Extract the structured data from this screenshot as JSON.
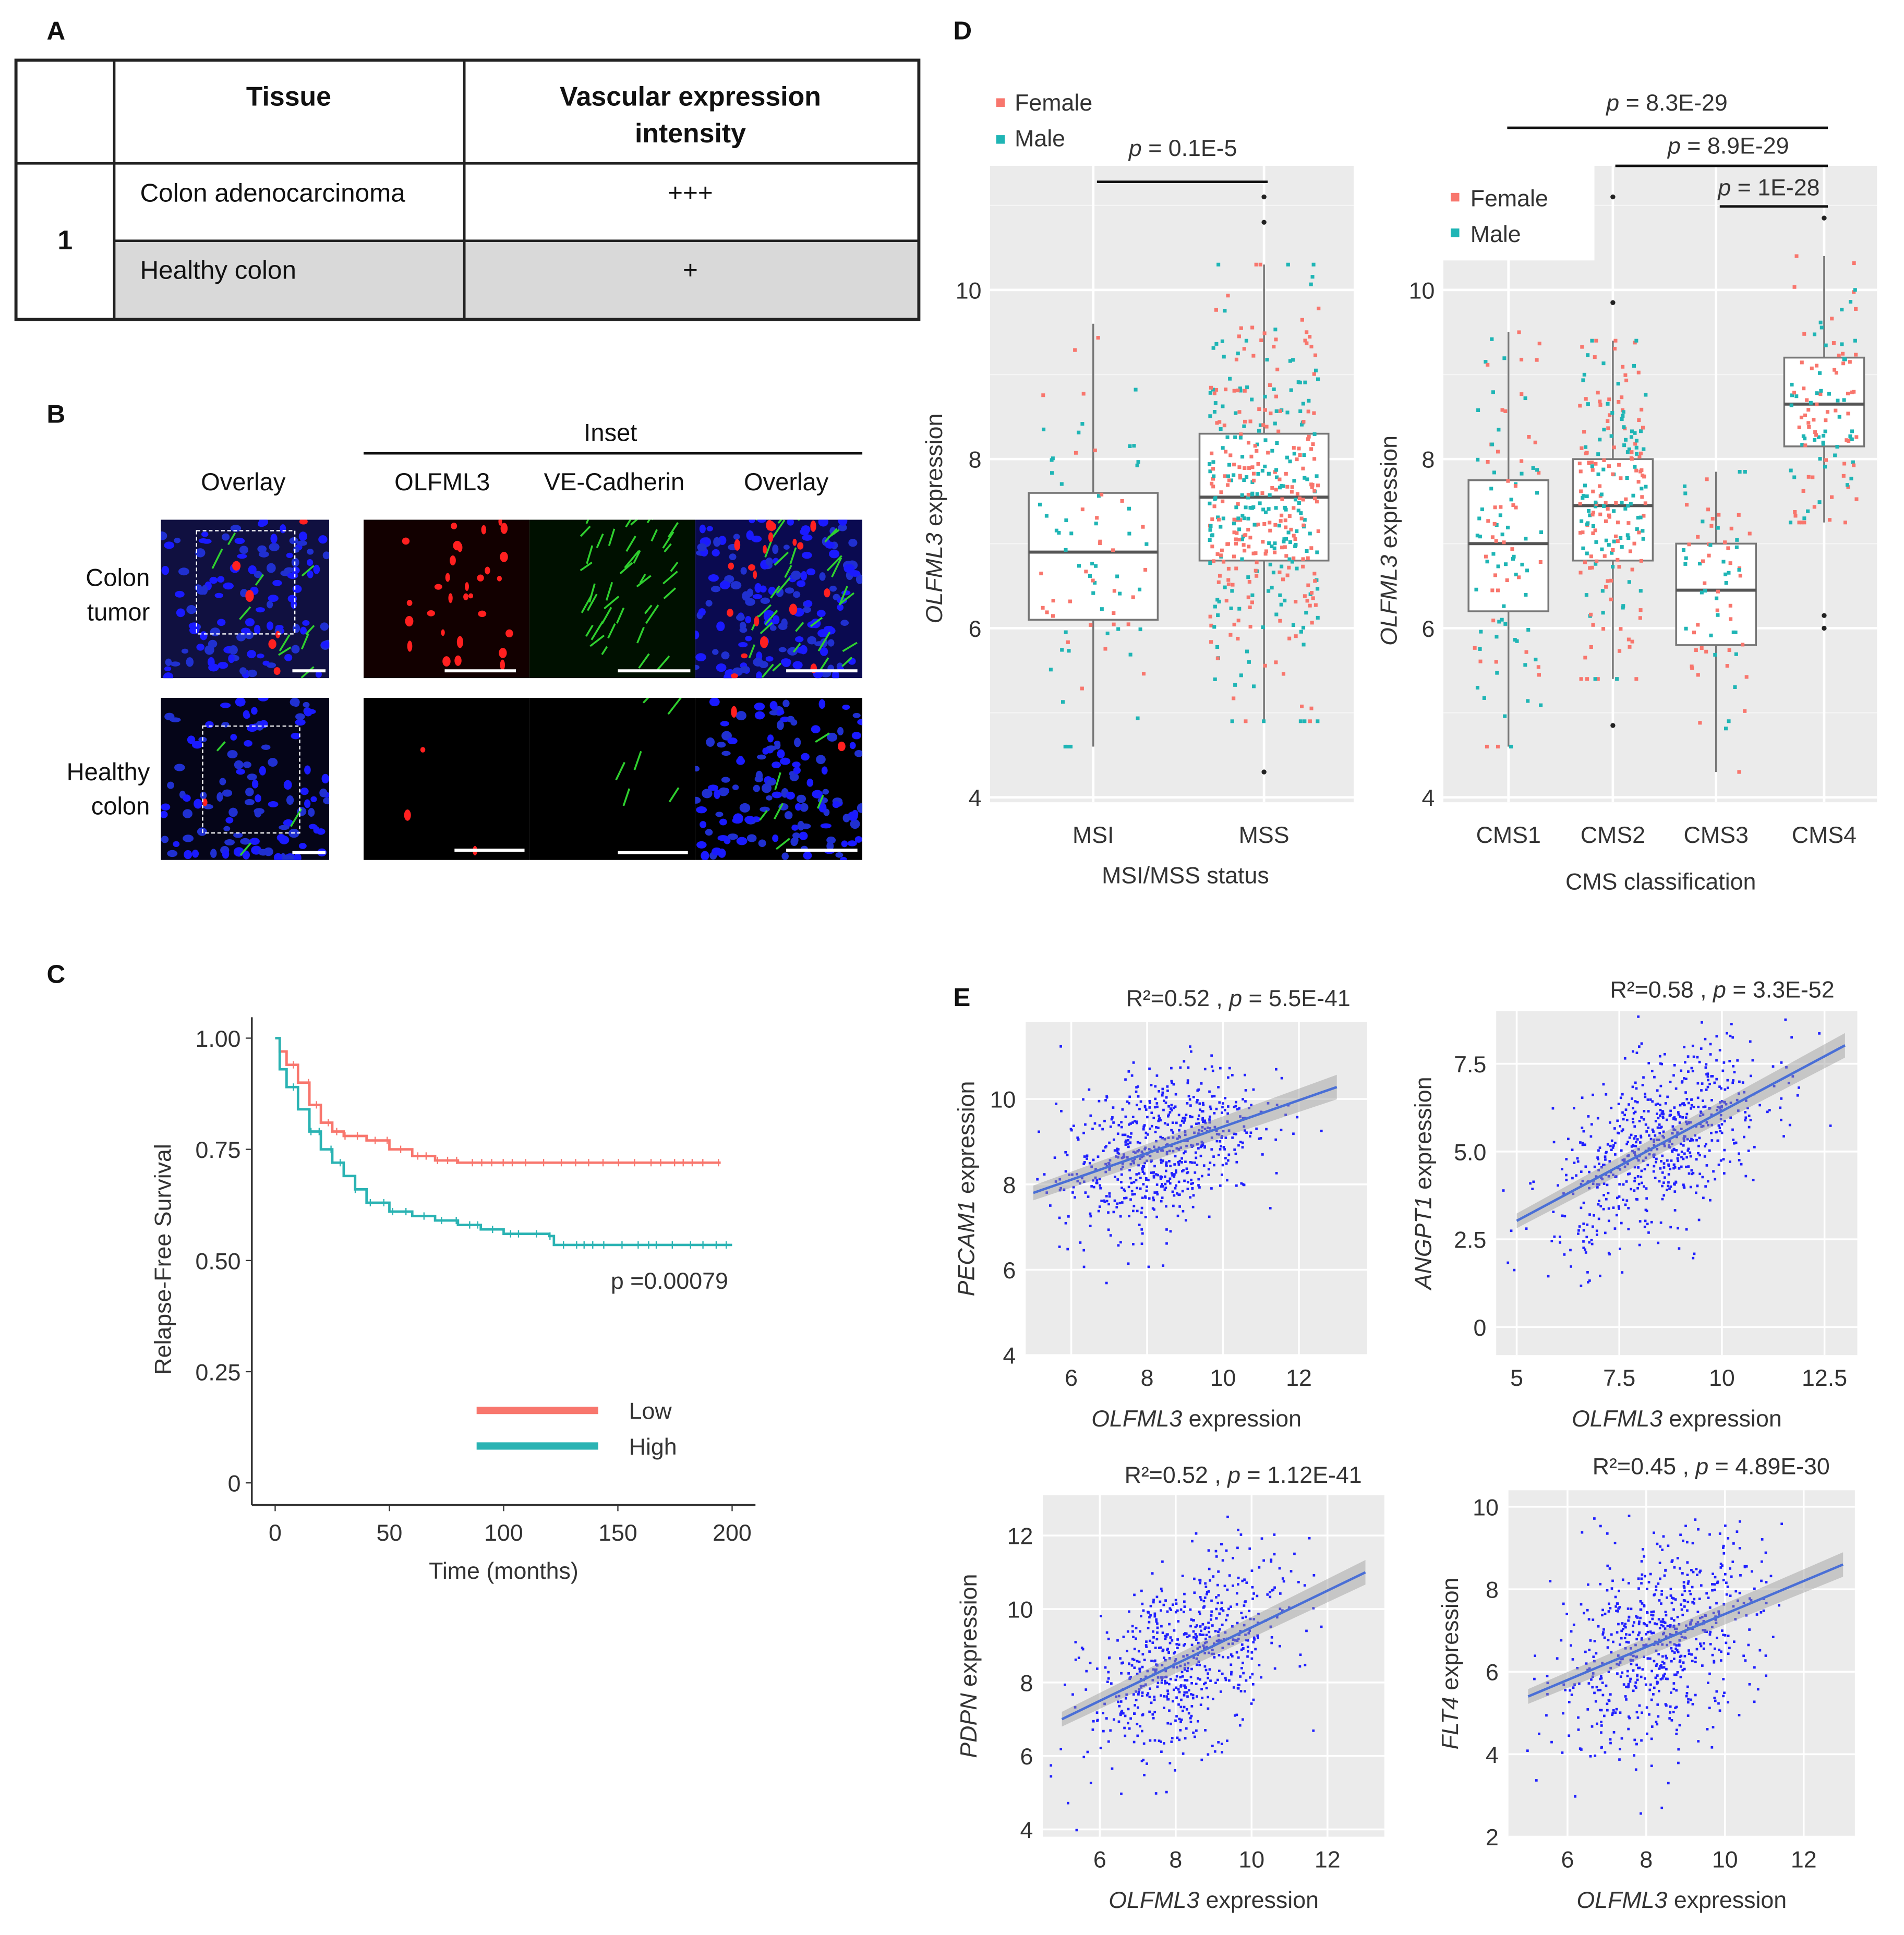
{
  "colors": {
    "female": "#f8766d",
    "male": "#1fb5b5",
    "low": "#f8766d",
    "high": "#2ab3b3",
    "point": "#2020ff",
    "fit": "#4a6fd6",
    "panel_bg": "#ebebeb"
  },
  "panel_a": {
    "label": "A",
    "headers": [
      "",
      "Tissue",
      "Vascular expression",
      "intensity"
    ],
    "group": "1",
    "rows": [
      {
        "tissue": "Colon adenocarcinoma",
        "intensity": "+++"
      },
      {
        "tissue": "Healthy colon",
        "intensity": "+"
      }
    ]
  },
  "panel_b": {
    "label": "B",
    "inset_title": "Inset",
    "columns": [
      "Overlay",
      "OLFML3",
      "VE-Cadherin",
      "Overlay"
    ],
    "rows": [
      [
        "Colon",
        "tumor"
      ],
      [
        "Healthy",
        "colon"
      ]
    ]
  },
  "panel_c": {
    "label": "C",
    "chart_data": {
      "type": "line",
      "title": "",
      "xlabel": "Time (months)",
      "ylabel": "Relapse-Free Survival",
      "xlim": [
        0,
        200
      ],
      "ylim": [
        0,
        1
      ],
      "xticks": [
        "0",
        "50",
        "100",
        "150",
        "200"
      ],
      "yticks": [
        "0",
        "0.25",
        "0.50",
        "0.75",
        "1.00"
      ],
      "annotation": "p =0.00079",
      "legend_position": "bottom-right",
      "series": [
        {
          "name": "Low",
          "x": [
            0,
            2,
            5,
            10,
            15,
            20,
            25,
            30,
            40,
            50,
            60,
            70,
            80,
            100,
            150,
            195
          ],
          "y": [
            1.0,
            0.97,
            0.94,
            0.9,
            0.85,
            0.81,
            0.79,
            0.78,
            0.77,
            0.75,
            0.735,
            0.725,
            0.72,
            0.72,
            0.72,
            0.72
          ]
        },
        {
          "name": "High",
          "x": [
            0,
            2,
            5,
            10,
            15,
            20,
            25,
            30,
            35,
            40,
            50,
            60,
            70,
            80,
            90,
            100,
            120,
            122,
            150,
            200
          ],
          "y": [
            1.0,
            0.93,
            0.89,
            0.84,
            0.79,
            0.75,
            0.72,
            0.69,
            0.66,
            0.63,
            0.61,
            0.6,
            0.59,
            0.58,
            0.57,
            0.56,
            0.555,
            0.535,
            0.535,
            0.535
          ]
        }
      ]
    }
  },
  "panel_d": {
    "label": "D",
    "chart_data": [
      {
        "type": "box",
        "xlabel": "MSI/MSS  status",
        "ylabel_gene": "OLFML3",
        "ylabel_rest": " expression",
        "ylim": [
          4,
          11.5
        ],
        "yticks": [
          "4",
          "6",
          "8",
          "10"
        ],
        "legend": [
          "Female",
          "Male"
        ],
        "categories": [
          "MSI",
          "MSS"
        ],
        "boxes": [
          {
            "q1": 6.1,
            "median": 6.9,
            "q3": 7.6,
            "low": 4.6,
            "high": 9.6,
            "outliers": []
          },
          {
            "q1": 6.8,
            "median": 7.55,
            "q3": 8.3,
            "low": 4.9,
            "high": 10.3,
            "outliers": [
              4.3,
              10.8,
              11.1
            ]
          }
        ],
        "comparisons": [
          {
            "from": "MSI",
            "to": "MSS",
            "p_prefix": "p",
            "p_value": " = 0.1E-5"
          }
        ]
      },
      {
        "type": "box",
        "xlabel": "CMS  classification",
        "ylabel_gene": "OLFML3",
        "ylabel_rest": " expression",
        "ylim": [
          4,
          11.5
        ],
        "yticks": [
          "4",
          "6",
          "8",
          "10"
        ],
        "legend": [
          "Female",
          "Male"
        ],
        "categories": [
          "CMS1",
          "CMS2",
          "CMS3",
          "CMS4"
        ],
        "boxes": [
          {
            "q1": 6.2,
            "median": 7.0,
            "q3": 7.75,
            "low": 4.6,
            "high": 9.5,
            "outliers": []
          },
          {
            "q1": 6.8,
            "median": 7.45,
            "q3": 8.0,
            "low": 5.4,
            "high": 9.4,
            "outliers": [
              4.85,
              9.85,
              11.1
            ]
          },
          {
            "q1": 5.8,
            "median": 6.45,
            "q3": 7.0,
            "low": 4.3,
            "high": 7.85,
            "outliers": []
          },
          {
            "q1": 8.15,
            "median": 8.65,
            "q3": 9.2,
            "low": 7.25,
            "high": 10.4,
            "outliers": [
              6.0,
              6.15,
              10.85
            ]
          }
        ],
        "comparisons": [
          {
            "from": "CMS1",
            "to": "CMS4",
            "p_prefix": "p",
            "p_value": " = 8.3E-29"
          },
          {
            "from": "CMS2",
            "to": "CMS4",
            "p_prefix": "p",
            "p_value": " = 8.9E-29"
          },
          {
            "from": "CMS3",
            "to": "CMS4",
            "p_prefix": "p",
            "p_value": " = 1E-28"
          }
        ]
      }
    ]
  },
  "panel_e": {
    "label": "E",
    "chart_data": [
      {
        "type": "scatter",
        "title_r2": "R²=0.52 , ",
        "title_p": "p",
        "title_pval": " = 5.5E-41",
        "xgene": "OLFML3",
        "ygene": "PECAM1",
        "label_rest": " expression",
        "xlim": [
          4.8,
          13.8
        ],
        "ylim": [
          4,
          11.8
        ],
        "xticks": [
          "6",
          "8",
          "10",
          "12"
        ],
        "yticks": [
          "4",
          "6",
          "8",
          "10"
        ],
        "fit": {
          "slope": 0.31,
          "intercept": 6.25
        },
        "center": [
          8.3,
          8.8
        ],
        "spread": [
          1.3,
          0.9
        ]
      },
      {
        "type": "scatter",
        "title_r2": "R²=0.58 , ",
        "title_p": "p",
        "title_pval": " = 3.3E-52",
        "xgene": "OLFML3",
        "ygene": "ANGPT1",
        "label_rest": " expression",
        "xlim": [
          4.5,
          13.3
        ],
        "ylim": [
          -0.8,
          9
        ],
        "xticks": [
          "5",
          "7.5",
          "10",
          "12.5"
        ],
        "yticks": [
          "0",
          "2.5",
          "5.0",
          "7.5"
        ],
        "fit": {
          "slope": 0.625,
          "intercept": -0.1
        },
        "center": [
          8.5,
          5.0
        ],
        "spread": [
          1.3,
          1.2
        ]
      },
      {
        "type": "scatter",
        "title_r2": "R²=0.52 , ",
        "title_p": "p",
        "title_pval": " = 1.12E-41",
        "xgene": "OLFML3",
        "ygene": "PDPN",
        "label_rest": " expression",
        "xlim": [
          4.5,
          13.5
        ],
        "ylim": [
          3.8,
          13.1
        ],
        "xticks": [
          "6",
          "8",
          "10",
          "12"
        ],
        "yticks": [
          "4",
          "6",
          "8",
          "10",
          "12"
        ],
        "fit": {
          "slope": 0.5,
          "intercept": 4.5
        },
        "center": [
          8.3,
          9.0
        ],
        "spread": [
          1.3,
          1.2
        ]
      },
      {
        "type": "scatter",
        "title_r2": "R²=0.45 , ",
        "title_p": "p",
        "title_pval": " = 4.89E-30",
        "xgene": "OLFML3",
        "ygene": "FLT4",
        "label_rest": " expression",
        "xlim": [
          4.5,
          13.3
        ],
        "ylim": [
          2,
          10.4
        ],
        "xticks": [
          "6",
          "8",
          "10",
          "12"
        ],
        "yticks": [
          "2",
          "4",
          "6",
          "8",
          "10"
        ],
        "fit": {
          "slope": 0.4,
          "intercept": 3.4
        },
        "center": [
          8.3,
          6.8
        ],
        "spread": [
          1.3,
          1.2
        ]
      }
    ]
  }
}
